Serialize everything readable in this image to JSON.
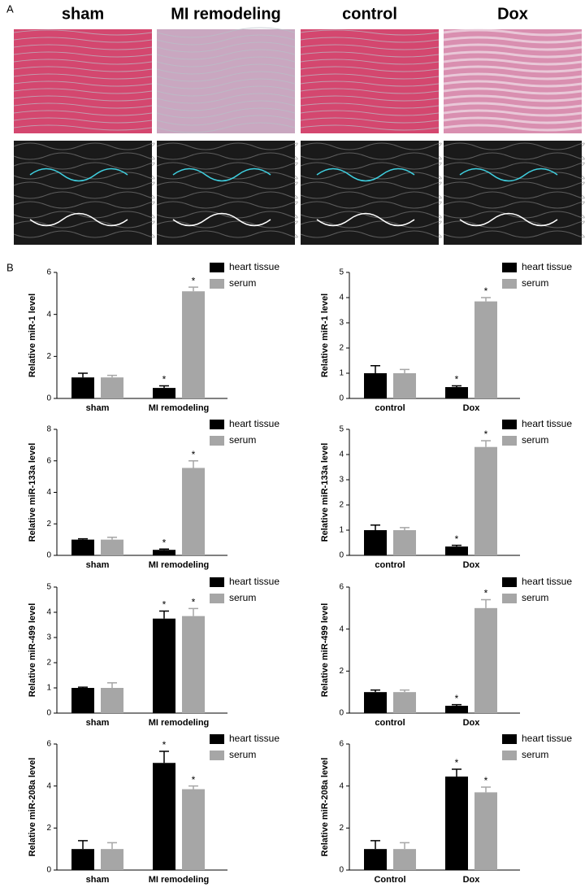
{
  "panels": {
    "a": {
      "label": "A",
      "titles": [
        "sham",
        "MI remodeling",
        "control",
        "Dox"
      ]
    },
    "b": {
      "label": "B"
    }
  },
  "chart_data": [
    {
      "type": "bar",
      "ylabel": "Relative miR-1 level",
      "categories": [
        "sham",
        "MI remodeling"
      ],
      "ylim": [
        0,
        6
      ],
      "yticks": [
        0,
        2,
        4,
        6
      ],
      "series": [
        {
          "name": "heart tissue",
          "color": "#000000",
          "values": [
            1.0,
            0.5
          ],
          "errors": [
            0.2,
            0.1
          ],
          "significance": [
            null,
            "*"
          ]
        },
        {
          "name": "serum",
          "color": "#a6a6a6",
          "values": [
            1.0,
            5.1
          ],
          "errors": [
            0.1,
            0.2
          ],
          "significance": [
            null,
            "*"
          ]
        }
      ]
    },
    {
      "type": "bar",
      "ylabel": "Relative miR-1 level",
      "categories": [
        "control",
        "Dox"
      ],
      "ylim": [
        0,
        5
      ],
      "yticks": [
        0,
        1,
        2,
        3,
        4,
        5
      ],
      "series": [
        {
          "name": "heart tissue",
          "color": "#000000",
          "values": [
            1.0,
            0.45
          ],
          "errors": [
            0.3,
            0.05
          ],
          "significance": [
            null,
            "*"
          ]
        },
        {
          "name": "serum",
          "color": "#a6a6a6",
          "values": [
            1.0,
            3.85
          ],
          "errors": [
            0.15,
            0.15
          ],
          "significance": [
            null,
            "*"
          ]
        }
      ]
    },
    {
      "type": "bar",
      "ylabel": "Relative miR-133a level",
      "categories": [
        "sham",
        "MI remodeling"
      ],
      "ylim": [
        0,
        8
      ],
      "yticks": [
        0,
        2,
        4,
        6,
        8
      ],
      "series": [
        {
          "name": "heart tissue",
          "color": "#000000",
          "values": [
            1.0,
            0.35
          ],
          "errors": [
            0.05,
            0.05
          ],
          "significance": [
            null,
            "*"
          ]
        },
        {
          "name": "serum",
          "color": "#a6a6a6",
          "values": [
            1.0,
            5.55
          ],
          "errors": [
            0.15,
            0.45
          ],
          "significance": [
            null,
            "*"
          ]
        }
      ]
    },
    {
      "type": "bar",
      "ylabel": "Relative miR-133a level",
      "categories": [
        "control",
        "Dox"
      ],
      "ylim": [
        0,
        5
      ],
      "yticks": [
        0,
        1,
        2,
        3,
        4,
        5
      ],
      "series": [
        {
          "name": "heart tissue",
          "color": "#000000",
          "values": [
            1.0,
            0.35
          ],
          "errors": [
            0.2,
            0.05
          ],
          "significance": [
            null,
            "*"
          ]
        },
        {
          "name": "serum",
          "color": "#a6a6a6",
          "values": [
            1.0,
            4.3
          ],
          "errors": [
            0.1,
            0.25
          ],
          "significance": [
            null,
            "*"
          ]
        }
      ]
    },
    {
      "type": "bar",
      "ylabel": "Relative miR-499 level",
      "categories": [
        "sham",
        "MI remodeling"
      ],
      "ylim": [
        0,
        5
      ],
      "yticks": [
        0,
        1,
        2,
        3,
        4,
        5
      ],
      "series": [
        {
          "name": "heart tissue",
          "color": "#000000",
          "values": [
            1.0,
            3.75
          ],
          "errors": [
            0.03,
            0.3
          ],
          "significance": [
            null,
            "*"
          ]
        },
        {
          "name": "serum",
          "color": "#a6a6a6",
          "values": [
            1.0,
            3.85
          ],
          "errors": [
            0.2,
            0.3
          ],
          "significance": [
            null,
            "*"
          ]
        }
      ]
    },
    {
      "type": "bar",
      "ylabel": "Relative miR-499 level",
      "categories": [
        "control",
        "Dox"
      ],
      "ylim": [
        0,
        6
      ],
      "yticks": [
        0,
        2,
        4,
        6
      ],
      "series": [
        {
          "name": "heart tissue",
          "color": "#000000",
          "values": [
            1.0,
            0.35
          ],
          "errors": [
            0.1,
            0.05
          ],
          "significance": [
            null,
            "*"
          ]
        },
        {
          "name": "serum",
          "color": "#a6a6a6",
          "values": [
            1.0,
            5.0
          ],
          "errors": [
            0.1,
            0.4
          ],
          "significance": [
            null,
            "*"
          ]
        }
      ]
    },
    {
      "type": "bar",
      "ylabel": "Relative miR-208a level",
      "categories": [
        "sham",
        "MI remodeling"
      ],
      "ylim": [
        0,
        6
      ],
      "yticks": [
        0,
        2,
        4,
        6
      ],
      "series": [
        {
          "name": "heart tissue",
          "color": "#000000",
          "values": [
            1.0,
            5.1
          ],
          "errors": [
            0.4,
            0.55
          ],
          "significance": [
            null,
            "*"
          ]
        },
        {
          "name": "serum",
          "color": "#a6a6a6",
          "values": [
            1.0,
            3.85
          ],
          "errors": [
            0.3,
            0.15
          ],
          "significance": [
            null,
            "*"
          ]
        }
      ]
    },
    {
      "type": "bar",
      "ylabel": "Relative miR-208a level",
      "categories": [
        "Control",
        "Dox"
      ],
      "ylim": [
        0,
        6
      ],
      "yticks": [
        0,
        2,
        4,
        6
      ],
      "series": [
        {
          "name": "heart tissue",
          "color": "#000000",
          "values": [
            1.0,
            4.45
          ],
          "errors": [
            0.4,
            0.35
          ],
          "significance": [
            null,
            "*"
          ]
        },
        {
          "name": "serum",
          "color": "#a6a6a6",
          "values": [
            1.0,
            3.7
          ],
          "errors": [
            0.3,
            0.25
          ],
          "significance": [
            null,
            "*"
          ]
        }
      ]
    }
  ]
}
